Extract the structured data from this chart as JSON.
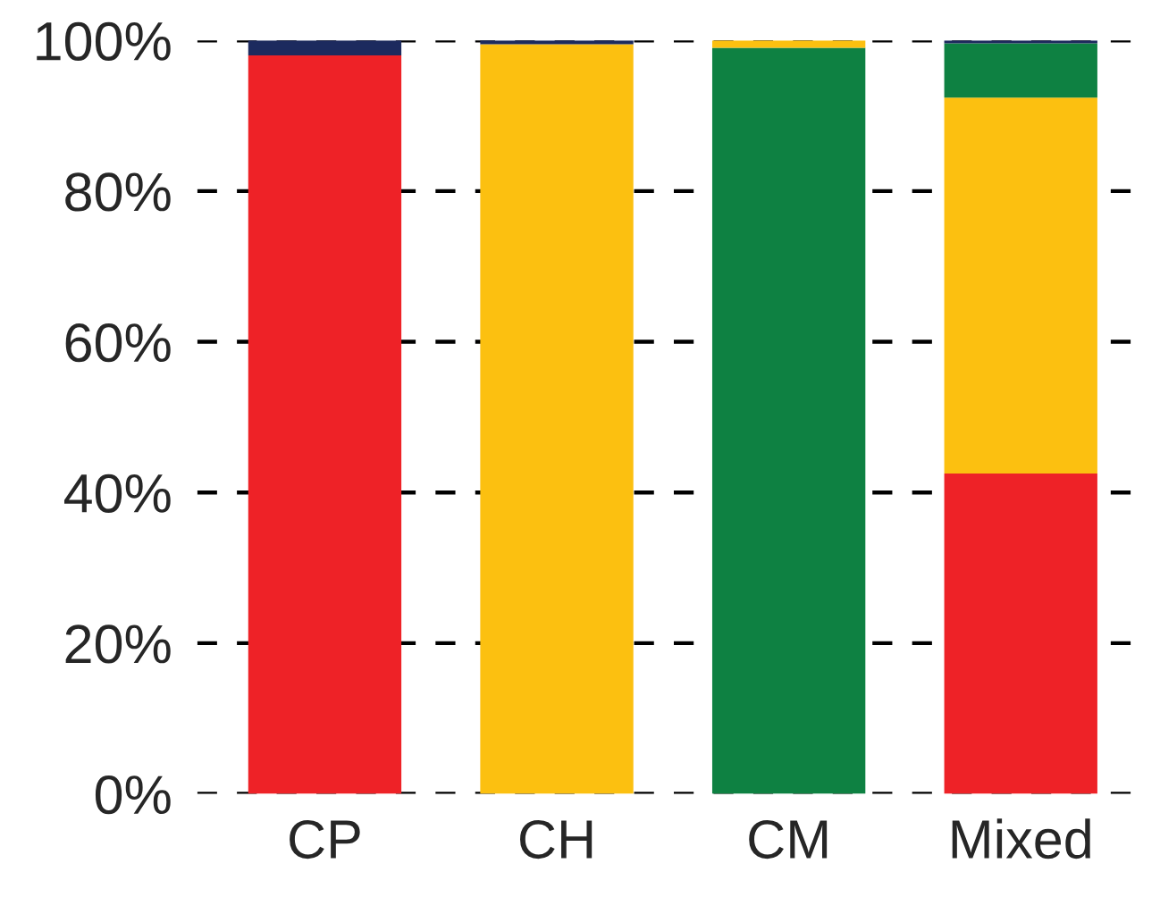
{
  "chart_data": {
    "type": "bar",
    "stacked": true,
    "categories": [
      "CP",
      "CH",
      "CM",
      "Mixed"
    ],
    "series": [
      {
        "color": "#ee2227",
        "values": [
          98,
          0,
          0,
          42.5
        ]
      },
      {
        "color": "#fcc010",
        "values": [
          0,
          99.5,
          0,
          49.9
        ]
      },
      {
        "color": "#0e8142",
        "values": [
          0,
          0,
          99,
          7.2
        ]
      },
      {
        "color": "#fcc010",
        "values": [
          0,
          0,
          1,
          0
        ]
      },
      {
        "color": "#1c2a5e",
        "values": [
          2,
          0.5,
          0,
          0.4
        ]
      }
    ],
    "ylim": [
      0,
      100
    ],
    "yticks": [
      {
        "value": 0,
        "label": "0%"
      },
      {
        "value": 20,
        "label": "20%"
      },
      {
        "value": 40,
        "label": "40%"
      },
      {
        "value": 60,
        "label": "60%"
      },
      {
        "value": 80,
        "label": "80%"
      },
      {
        "value": 100,
        "label": "100%"
      }
    ],
    "grid": "y",
    "line_style": "dashed",
    "legend": false
  }
}
